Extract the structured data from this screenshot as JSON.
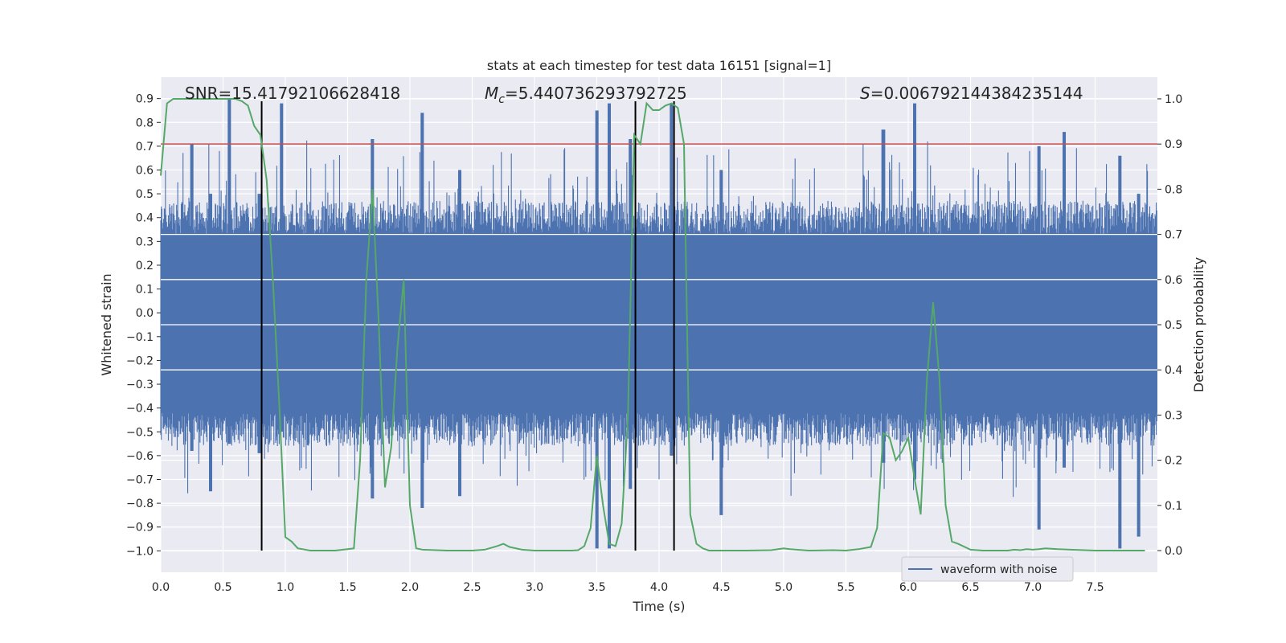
{
  "chart_data": {
    "type": "line",
    "title": "stats at each timestep for test data 16151 [signal=1]",
    "xlabel": "Time (s)",
    "ylabel": "Whitened strain",
    "y2label": "Detection probability",
    "xlim": [
      0.0,
      8.0
    ],
    "ylim": [
      -1.09,
      0.99
    ],
    "y2lim": [
      -0.048,
      1.048
    ],
    "xticks": [
      "0.0",
      "0.5",
      "1.0",
      "1.5",
      "2.0",
      "2.5",
      "3.0",
      "3.5",
      "4.0",
      "4.5",
      "5.0",
      "5.5",
      "6.0",
      "6.5",
      "7.0",
      "7.5"
    ],
    "xtick_values": [
      0.0,
      0.5,
      1.0,
      1.5,
      2.0,
      2.5,
      3.0,
      3.5,
      4.0,
      4.5,
      5.0,
      5.5,
      6.0,
      6.5,
      7.0,
      7.5
    ],
    "yticks": [
      "0.9",
      "0.8",
      "0.7",
      "0.6",
      "0.5",
      "0.4",
      "0.3",
      "0.2",
      "0.1",
      "0.0",
      "−0.1",
      "−0.2",
      "−0.3",
      "−0.4",
      "−0.5",
      "−0.6",
      "−0.7",
      "−0.8",
      "−0.9",
      "−1.0"
    ],
    "ytick_values": [
      0.9,
      0.8,
      0.7,
      0.6,
      0.5,
      0.4,
      0.3,
      0.2,
      0.1,
      0.0,
      -0.1,
      -0.2,
      -0.3,
      -0.4,
      -0.5,
      -0.6,
      -0.7,
      -0.8,
      -0.9,
      -1.0
    ],
    "y2ticks": [
      "1.0",
      "0.9",
      "0.8",
      "0.7",
      "0.6",
      "0.5",
      "0.4",
      "0.3",
      "0.2",
      "0.1",
      "0.0"
    ],
    "y2tick_values": [
      1.0,
      0.9,
      0.8,
      0.7,
      0.6,
      0.5,
      0.4,
      0.3,
      0.2,
      0.1,
      0.0
    ],
    "annotations": {
      "snr": "SNR=15.41792106628418",
      "mc_symbol": "M",
      "mc_sub": "c",
      "mc_value": "=5.440736293792725",
      "s_symbol": "S",
      "s_value": "=0.006792144384235144"
    },
    "legend": [
      {
        "label": "waveform with noise",
        "color": "#4c72b0"
      }
    ],
    "legend_position": "lower-right",
    "threshold": {
      "y2": 0.9,
      "color": "#c44e52"
    },
    "vertical_lines": [
      0.81,
      3.81,
      4.12
    ],
    "waveform": {
      "name": "waveform with noise",
      "color": "#4c72b0",
      "dense_band": [
        -0.42,
        0.33
      ],
      "peaks": [
        {
          "t": 0.55,
          "max": 0.9,
          "min": -0.55
        },
        {
          "t": 0.25,
          "max": 0.71,
          "min": -0.58
        },
        {
          "t": 0.4,
          "max": 0.5,
          "min": -0.75
        },
        {
          "t": 0.79,
          "max": 0.5,
          "min": -0.59
        },
        {
          "t": 0.97,
          "max": 0.88,
          "min": -0.5
        },
        {
          "t": 1.7,
          "max": 0.73,
          "min": -0.78
        },
        {
          "t": 2.1,
          "max": 0.84,
          "min": -0.82
        },
        {
          "t": 2.4,
          "max": 0.6,
          "min": -0.77
        },
        {
          "t": 3.5,
          "max": 0.85,
          "min": -0.99
        },
        {
          "t": 3.6,
          "max": 0.88,
          "min": -0.99
        },
        {
          "t": 3.77,
          "max": 0.73,
          "min": -0.74
        },
        {
          "t": 4.1,
          "max": 0.88,
          "min": -0.6
        },
        {
          "t": 4.5,
          "max": 0.6,
          "min": -0.85
        },
        {
          "t": 5.8,
          "max": 0.77,
          "min": -0.63
        },
        {
          "t": 6.05,
          "max": 0.88,
          "min": -0.7
        },
        {
          "t": 7.05,
          "max": 0.7,
          "min": -0.91
        },
        {
          "t": 7.25,
          "max": 0.76,
          "min": -0.65
        },
        {
          "t": 7.7,
          "max": 0.66,
          "min": -0.99
        },
        {
          "t": 7.85,
          "max": 0.5,
          "min": -0.94
        }
      ]
    },
    "probability": {
      "color": "#55a868",
      "x": [
        0.0,
        0.05,
        0.1,
        0.2,
        0.3,
        0.4,
        0.5,
        0.6,
        0.65,
        0.7,
        0.75,
        0.8,
        0.85,
        0.9,
        0.95,
        1.0,
        1.05,
        1.1,
        1.2,
        1.3,
        1.4,
        1.5,
        1.55,
        1.6,
        1.65,
        1.7,
        1.75,
        1.8,
        1.85,
        1.9,
        1.95,
        2.0,
        2.05,
        2.1,
        2.3,
        2.5,
        2.6,
        2.7,
        2.75,
        2.8,
        2.9,
        3.0,
        3.2,
        3.3,
        3.35,
        3.4,
        3.45,
        3.5,
        3.55,
        3.6,
        3.65,
        3.7,
        3.75,
        3.8,
        3.85,
        3.9,
        3.95,
        4.0,
        4.05,
        4.1,
        4.15,
        4.2,
        4.25,
        4.3,
        4.35,
        4.4,
        4.5,
        4.7,
        4.9,
        5.0,
        5.05,
        5.2,
        5.4,
        5.5,
        5.6,
        5.7,
        5.75,
        5.8,
        5.85,
        5.9,
        5.95,
        6.0,
        6.05,
        6.1,
        6.15,
        6.2,
        6.25,
        6.3,
        6.35,
        6.4,
        6.5,
        6.6,
        6.7,
        6.8,
        6.85,
        6.9,
        6.95,
        7.0,
        7.05,
        7.1,
        7.2,
        7.3,
        7.5,
        7.7,
        7.9
      ],
      "values": [
        0.83,
        0.99,
        1.0,
        1.0,
        1.0,
        1.0,
        1.0,
        1.0,
        0.995,
        0.985,
        0.94,
        0.92,
        0.82,
        0.6,
        0.33,
        0.03,
        0.02,
        0.005,
        0.0,
        0.0,
        0.0,
        0.003,
        0.005,
        0.2,
        0.6,
        0.8,
        0.5,
        0.14,
        0.23,
        0.45,
        0.6,
        0.1,
        0.005,
        0.002,
        0.0,
        0.0,
        0.002,
        0.01,
        0.015,
        0.008,
        0.002,
        0.0,
        0.0,
        0.0,
        0.001,
        0.01,
        0.05,
        0.21,
        0.1,
        0.015,
        0.01,
        0.06,
        0.3,
        0.92,
        0.9,
        0.99,
        0.975,
        0.975,
        0.985,
        0.99,
        0.98,
        0.9,
        0.08,
        0.015,
        0.005,
        0.0,
        0.0,
        0.0,
        0.001,
        0.005,
        0.003,
        0.0,
        0.001,
        0.0,
        0.003,
        0.008,
        0.05,
        0.26,
        0.25,
        0.2,
        0.22,
        0.25,
        0.16,
        0.08,
        0.38,
        0.55,
        0.38,
        0.1,
        0.02,
        0.015,
        0.002,
        0.0,
        0.0,
        0.0,
        0.002,
        0.001,
        0.003,
        0.002,
        0.003,
        0.005,
        0.003,
        0.002,
        0.0,
        0.0,
        0.0
      ]
    }
  }
}
